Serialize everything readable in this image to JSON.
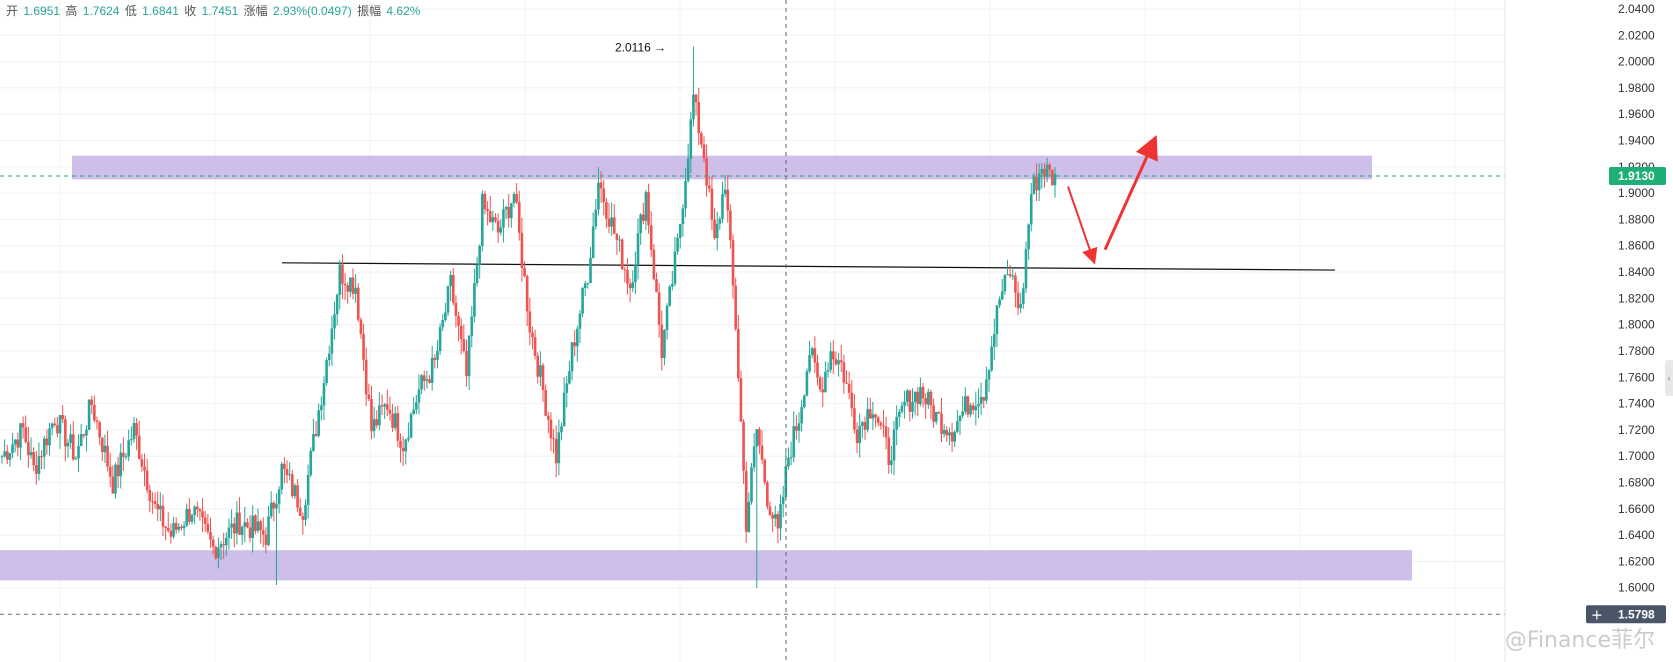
{
  "ohlc": {
    "open_label": "开",
    "open": "1.6951",
    "high_label": "高",
    "high": "1.7624",
    "low_label": "低",
    "low": "1.6841",
    "close_label": "收",
    "close": "1.7451",
    "change_label": "涨幅",
    "change": "2.93%(0.0497)",
    "amplitude_label": "振幅",
    "amplitude": "4.62%"
  },
  "watermark": "@Finance菲尔",
  "colors": {
    "up": "#26a69a",
    "down": "#ef5350",
    "zone": "#c5b3e6",
    "arrow": "#ee3333",
    "price_badge": "#1fae75",
    "crosshair_badge": "#4a5568"
  },
  "chart_data": {
    "type": "candlestick",
    "ylim": [
      1.58,
      2.04
    ],
    "y_ticks": [
      "2.0400",
      "2.0200",
      "2.0000",
      "1.9800",
      "1.9600",
      "1.9400",
      "1.9200",
      "1.9000",
      "1.8800",
      "1.8600",
      "1.8400",
      "1.8200",
      "1.8000",
      "1.7800",
      "1.7600",
      "1.7400",
      "1.7200",
      "1.7000",
      "1.6800",
      "1.6600",
      "1.6400",
      "1.6200",
      "1.6000"
    ],
    "last_price": "1.9130",
    "crosshair_price": "1.5798",
    "peak_annotation": {
      "label": "2.0116 →",
      "value": 2.0116
    },
    "resistance_zone": [
      1.9105,
      1.9285
    ],
    "support_zone": [
      1.6055,
      1.6285
    ],
    "trendline": {
      "start": 1.847,
      "end": 1.8415
    },
    "projection_arrows": [
      {
        "from": 1.905,
        "to": 1.85
      },
      {
        "from": 1.857,
        "to": 1.938
      }
    ],
    "anchors": [
      [
        0,
        1.7
      ],
      [
        8,
        1.72
      ],
      [
        12,
        1.69
      ],
      [
        20,
        1.73
      ],
      [
        28,
        1.7
      ],
      [
        34,
        1.74
      ],
      [
        42,
        1.68
      ],
      [
        50,
        1.72
      ],
      [
        58,
        1.66
      ],
      [
        64,
        1.64
      ],
      [
        72,
        1.66
      ],
      [
        80,
        1.63
      ],
      [
        90,
        1.65
      ],
      [
        100,
        1.64
      ],
      [
        106,
        1.69
      ],
      [
        114,
        1.66
      ],
      [
        122,
        1.76
      ],
      [
        128,
        1.84
      ],
      [
        134,
        1.83
      ],
      [
        140,
        1.72
      ],
      [
        146,
        1.74
      ],
      [
        152,
        1.71
      ],
      [
        158,
        1.75
      ],
      [
        164,
        1.77
      ],
      [
        170,
        1.83
      ],
      [
        176,
        1.76
      ],
      [
        182,
        1.89
      ],
      [
        188,
        1.87
      ],
      [
        194,
        1.9
      ],
      [
        200,
        1.8
      ],
      [
        206,
        1.74
      ],
      [
        210,
        1.7
      ],
      [
        216,
        1.78
      ],
      [
        222,
        1.84
      ],
      [
        226,
        1.91
      ],
      [
        232,
        1.87
      ],
      [
        238,
        1.83
      ],
      [
        244,
        1.9
      ],
      [
        250,
        1.78
      ],
      [
        256,
        1.86
      ],
      [
        262,
        1.97
      ],
      [
        266,
        1.93
      ],
      [
        270,
        1.86
      ],
      [
        274,
        1.91
      ],
      [
        278,
        1.8
      ],
      [
        282,
        1.65
      ],
      [
        286,
        1.72
      ],
      [
        290,
        1.67
      ],
      [
        294,
        1.64
      ],
      [
        298,
        1.7
      ],
      [
        302,
        1.73
      ],
      [
        306,
        1.78
      ],
      [
        310,
        1.75
      ],
      [
        314,
        1.78
      ],
      [
        318,
        1.77
      ],
      [
        324,
        1.72
      ],
      [
        330,
        1.74
      ],
      [
        336,
        1.7
      ],
      [
        342,
        1.74
      ],
      [
        348,
        1.75
      ],
      [
        354,
        1.73
      ],
      [
        360,
        1.72
      ],
      [
        366,
        1.74
      ],
      [
        372,
        1.75
      ],
      [
        378,
        1.82
      ],
      [
        382,
        1.84
      ],
      [
        386,
        1.81
      ],
      [
        390,
        1.9
      ],
      [
        394,
        1.92
      ],
      [
        399,
        1.91
      ]
    ],
    "candle_count": 400
  }
}
